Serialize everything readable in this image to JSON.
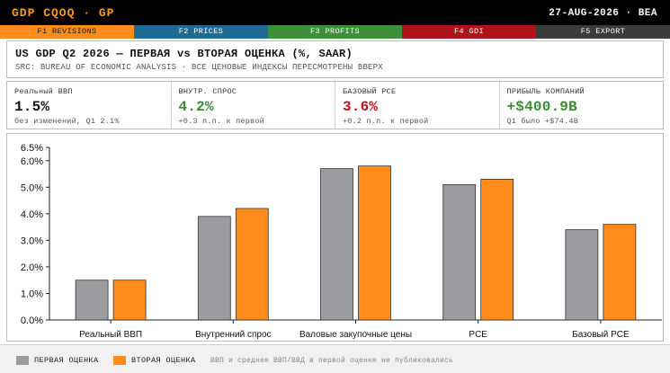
{
  "topbar": {
    "title": "GDP CQOQ · GP",
    "date": "27-AUG-2026 · BEA"
  },
  "fkeys": [
    {
      "label": "F1 REVISIONS",
      "color": "#ff8c1a"
    },
    {
      "label": "F2 PRICES",
      "color": "#1f6b94"
    },
    {
      "label": "F3 PROFITS",
      "color": "#3e8f3a"
    },
    {
      "label": "F4 GDI",
      "color": "#b0121b"
    },
    {
      "label": "F5 EXPORT",
      "color": "#3b3b3b"
    }
  ],
  "header": {
    "title": "US GDP Q2 2026 — ПЕРВАЯ vs ВТОРАЯ ОЦЕНКА (%, SAAR)",
    "subtitle": "SRC: BUREAU OF ECONOMIC ANALYSIS · ВСЕ ЦЕНОВЫЕ ИНДЕКСЫ ПЕРЕСМОТРЕНЫ ВВЕРХ"
  },
  "kpis": [
    {
      "label": "Реальный ВВП",
      "value": "1.5%",
      "note": "без изменений, Q1 2.1%",
      "color": "#111111"
    },
    {
      "label": "ВНУТР. СПРОС",
      "value": "4.2%",
      "note": "+0.3 п.п. к первой",
      "color": "#3a8a34"
    },
    {
      "label": "БАЗОВЫЙ PCE",
      "value": "3.6%",
      "note": "+0.2 п.п. к первой",
      "color": "#c0101a"
    },
    {
      "label": "ПРИБЫЛЬ КОМПАНИЙ",
      "value": "+$400.9B",
      "note": "Q1 было +$74.4B",
      "color": "#3a8a34"
    }
  ],
  "chart_data": {
    "type": "bar",
    "categories": [
      "Реальный ВВП",
      "Внутренний спрос",
      "Валовые закупочные цены",
      "PCE",
      "Базовый PCE"
    ],
    "series": [
      {
        "name": "ПЕРВАЯ ОЦЕНКА",
        "values": [
          1.5,
          3.9,
          5.7,
          5.1,
          3.4
        ],
        "color": "#9a9ca0"
      },
      {
        "name": "ВТОРАЯ ОЦЕНКА",
        "values": [
          1.5,
          4.2,
          5.8,
          5.3,
          3.6
        ],
        "color": "#ff8c1a"
      }
    ],
    "yticks": [
      "0.0%",
      "1.0%",
      "2.0%",
      "3.0%",
      "4.0%",
      "5.0%",
      "6.0%",
      "6.5%"
    ],
    "ytick_values": [
      0,
      1,
      2,
      3,
      4,
      5,
      6,
      6.5
    ],
    "ylim": [
      0,
      6.5
    ],
    "grid": false
  },
  "legend": {
    "items": [
      {
        "label": "ПЕРВАЯ ОЦЕНКА",
        "color": "#9a9ca0"
      },
      {
        "label": "ВТОРАЯ ОЦЕНКА",
        "color": "#ff8c1a"
      }
    ],
    "note": "ВВП и среднее ВВП/ВВД в первой оценке не публиковались"
  }
}
